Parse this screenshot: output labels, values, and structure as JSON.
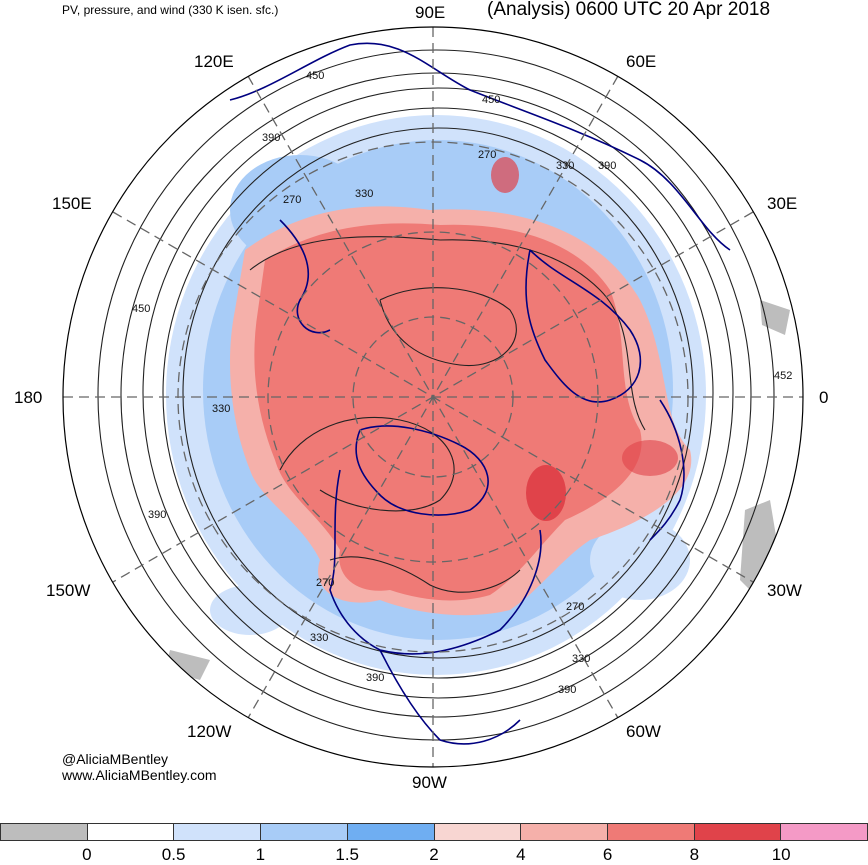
{
  "header": {
    "product_title": "PV, pressure, and wind (330 K isen. sfc.)",
    "analysis_title": "(Analysis) 0600 UTC 20 Apr 2018"
  },
  "longitude_labels": {
    "lon_90e": "90E",
    "lon_60e": "60E",
    "lon_30e": "30E",
    "lon_0": "0",
    "lon_30w": "30W",
    "lon_60w": "60W",
    "lon_90w": "90W",
    "lon_120w": "120W",
    "lon_150w": "150W",
    "lon_180": "180",
    "lon_150e": "150E",
    "lon_120e": "120E"
  },
  "contour_labels": {
    "c1": "450",
    "c2": "450",
    "c3": "390",
    "c4": "270",
    "c5": "330",
    "c6": "330",
    "c7": "390",
    "c8": "270",
    "c9": "450",
    "c10": "330",
    "c11": "390",
    "c12": "270",
    "c13": "330",
    "c14": "390",
    "c15": "330",
    "c16": "390",
    "c17": "270",
    "c18": "390",
    "c19": "452"
  },
  "credit": {
    "handle": "@AliciaMBentley",
    "website": "www.AliciaMBentley.com"
  },
  "colorbar": {
    "segment_colors": [
      "#bdbdbd",
      "#ffffff",
      "#d0e2fb",
      "#a8ccf7",
      "#6faef2",
      "#f8d6d2",
      "#f5b0aa",
      "#ef7a76",
      "#e0434a",
      "#f49ac6"
    ],
    "ticks": [
      "0",
      "0.5",
      "1",
      "1.5",
      "2",
      "4",
      "6",
      "8",
      "10"
    ]
  },
  "map_colors": {
    "pv_high": "#ef7a76",
    "pv_high_light": "#f5b0aa",
    "pv_low": "#a8ccf7",
    "pv_low_light": "#d0e2fb",
    "coastline": "#000080",
    "contour": "#222222",
    "grid": "#666666"
  }
}
